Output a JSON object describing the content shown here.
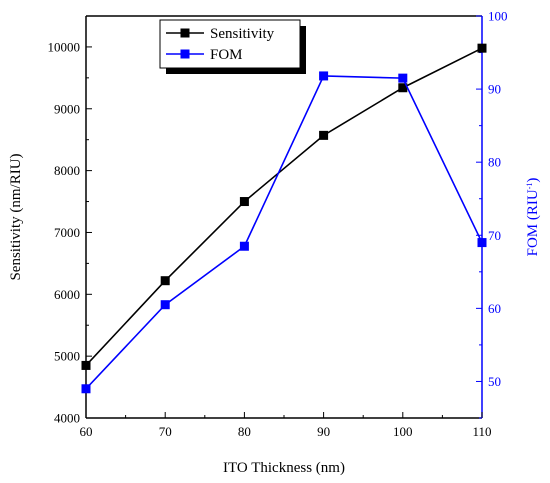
{
  "chart_data": {
    "type": "line",
    "x": [
      60,
      70,
      80,
      90,
      100,
      110
    ],
    "xlabel": "ITO Thickness (nm)",
    "xlim": [
      60,
      110
    ],
    "xticks": [
      60,
      70,
      80,
      90,
      100,
      110
    ],
    "series": [
      {
        "name": "Sensitivity",
        "axis": "left",
        "color": "#000000",
        "values": [
          4850,
          6220,
          7500,
          8570,
          9340,
          9980
        ]
      },
      {
        "name": "FOM",
        "axis": "right",
        "color": "#0000ff",
        "values": [
          49.0,
          60.5,
          68.5,
          91.8,
          91.5,
          69.0
        ]
      }
    ],
    "left_axis": {
      "label": "Sensitivity (nm/RIU)",
      "ylim": [
        4000,
        10500
      ],
      "ticks": [
        4000,
        5000,
        6000,
        7000,
        8000,
        9000,
        10000
      ],
      "color": "#000000"
    },
    "right_axis": {
      "label_main": "FOM (RIU",
      "label_sup": "-1",
      "label_close": ")",
      "ylim": [
        45,
        100
      ],
      "ticks": [
        50,
        60,
        70,
        80,
        90,
        100
      ],
      "color": "#0000ff"
    },
    "legend_position": "top-center",
    "grid": false
  }
}
